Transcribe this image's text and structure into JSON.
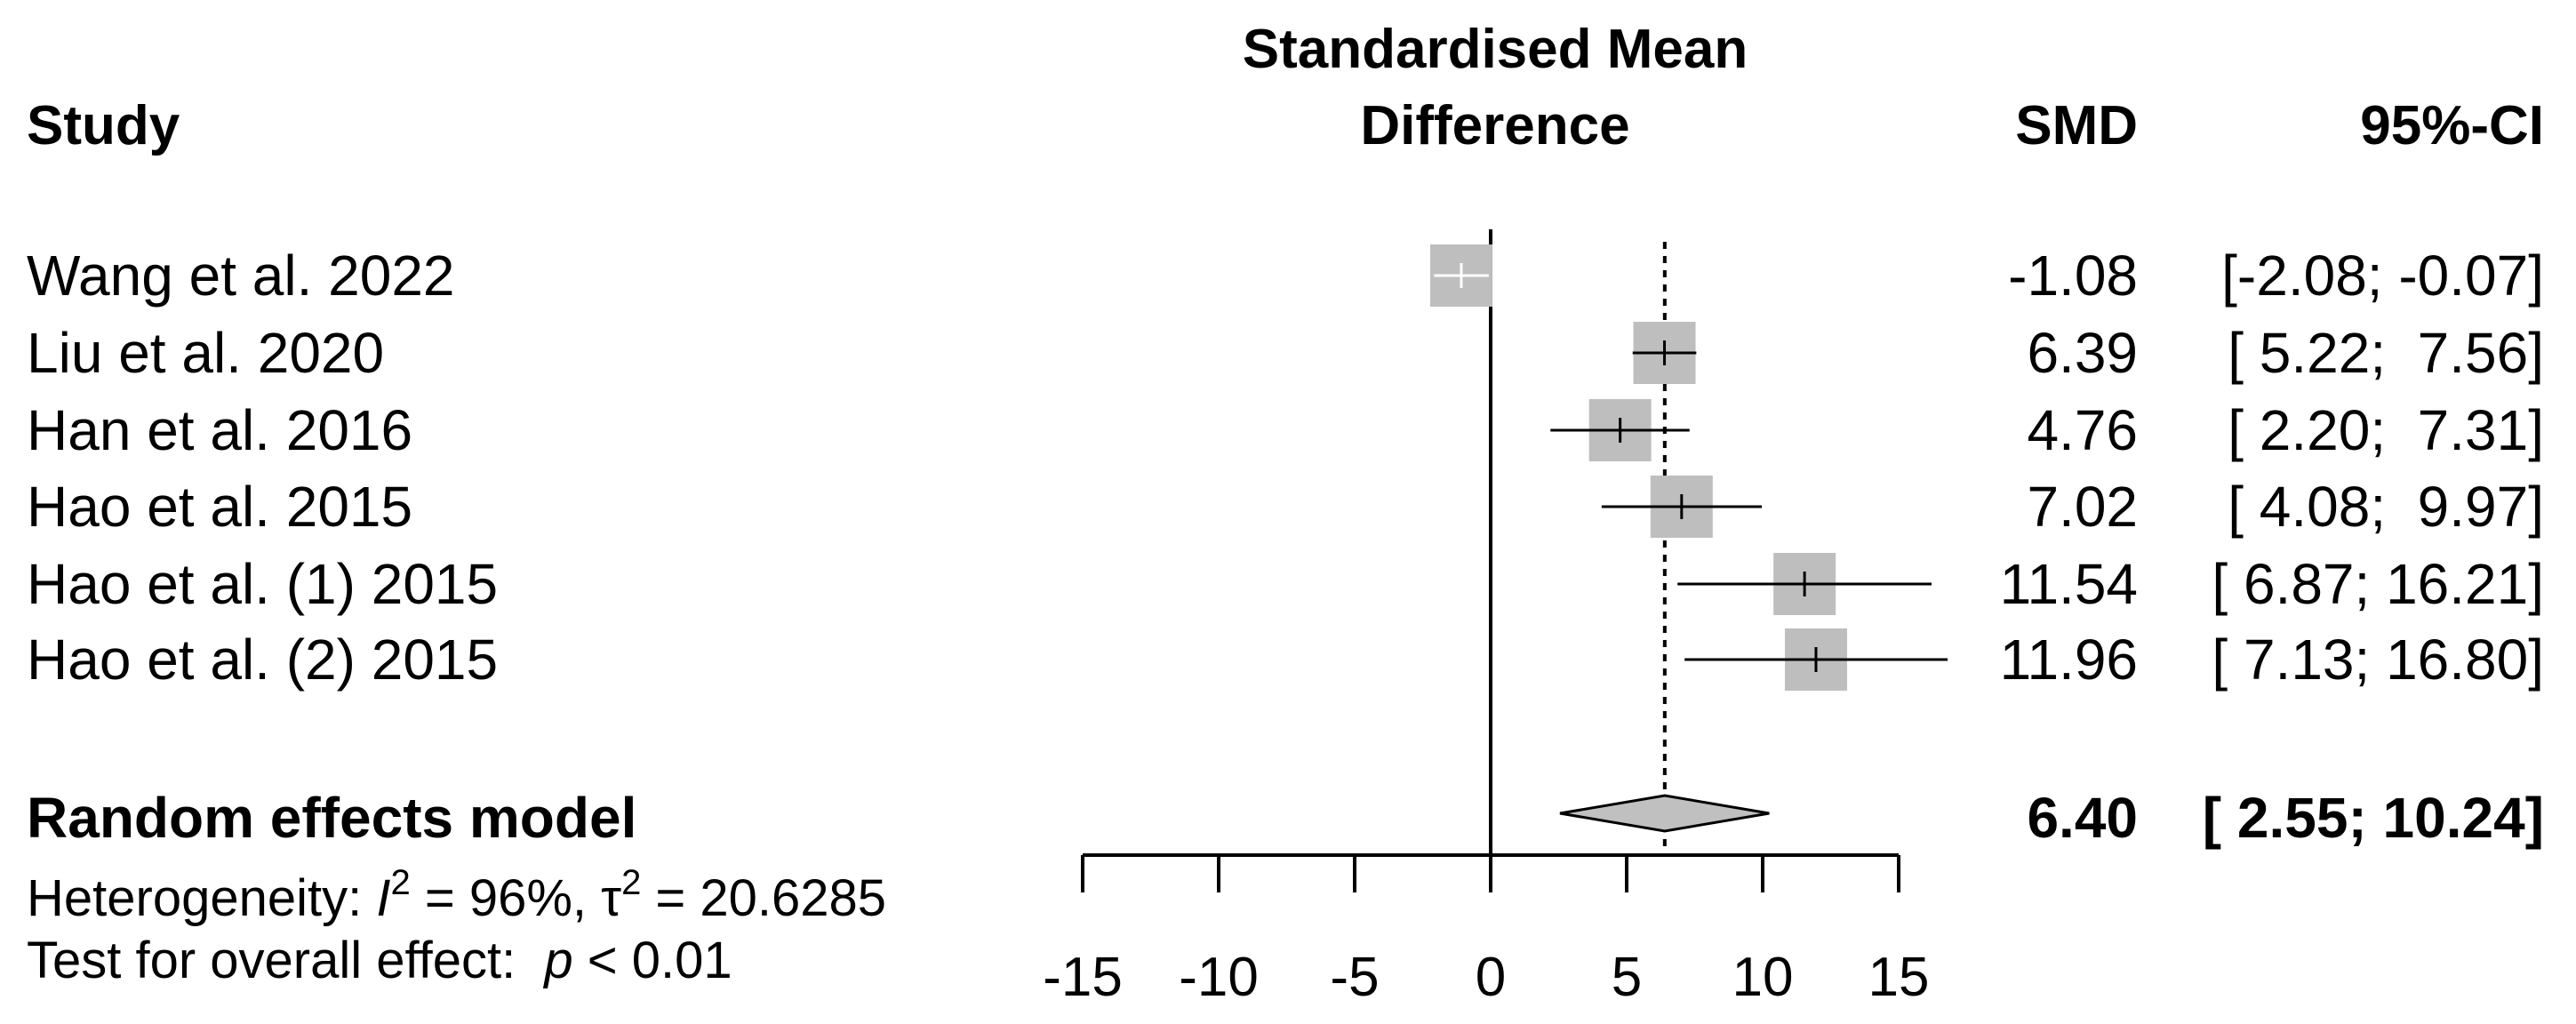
{
  "headers": {
    "study": "Study",
    "effect_line1": "Standardised Mean",
    "effect_line2": "Difference",
    "smd": "SMD",
    "ci": "95%-CI"
  },
  "chart_data": {
    "type": "forest",
    "xlim": [
      -15,
      15
    ],
    "ticks": [
      -15,
      -10,
      -5,
      0,
      5,
      10,
      15
    ],
    "null_line": 0,
    "pooled_line": 6.4,
    "studies": [
      {
        "name": "Wang et al. 2022",
        "smd": -1.08,
        "lo": -2.08,
        "hi": -0.07,
        "smd_text": "-1.08",
        "ci_text": "[-2.08; -0.07]"
      },
      {
        "name": "Liu et al. 2020",
        "smd": 6.39,
        "lo": 5.22,
        "hi": 7.56,
        "smd_text": "6.39",
        "ci_text": "[ 5.22;  7.56]"
      },
      {
        "name": "Han et al. 2016",
        "smd": 4.76,
        "lo": 2.2,
        "hi": 7.31,
        "smd_text": "4.76",
        "ci_text": "[ 2.20;  7.31]"
      },
      {
        "name": "Hao et al. 2015",
        "smd": 7.02,
        "lo": 4.08,
        "hi": 9.97,
        "smd_text": "7.02",
        "ci_text": "[ 4.08;  9.97]"
      },
      {
        "name": "Hao et al. (1) 2015",
        "smd": 11.54,
        "lo": 6.87,
        "hi": 16.21,
        "smd_text": "11.54",
        "ci_text": "[ 6.87; 16.21]"
      },
      {
        "name": "Hao et al. (2) 2015",
        "smd": 11.96,
        "lo": 7.13,
        "hi": 16.8,
        "smd_text": "11.96",
        "ci_text": "[ 7.13; 16.80]"
      }
    ],
    "pooled": {
      "name": "Random effects model",
      "smd": 6.4,
      "lo": 2.55,
      "hi": 10.24,
      "smd_text": "6.40",
      "ci_text": "[ 2.55; 10.24]"
    },
    "heterogeneity": {
      "prefix": "Heterogeneity: ",
      "i2_symbol": "I",
      "i2_value": " = 96%, ",
      "tau_symbol": "τ",
      "tau_value": " = 20.6285"
    },
    "overall_test": {
      "prefix": "Test for overall effect:  ",
      "p_symbol": "p",
      "p_value": " < 0.01"
    },
    "colors": {
      "box": "#bebebe",
      "line": "#000000",
      "diamond": "#c0c0c0"
    }
  }
}
